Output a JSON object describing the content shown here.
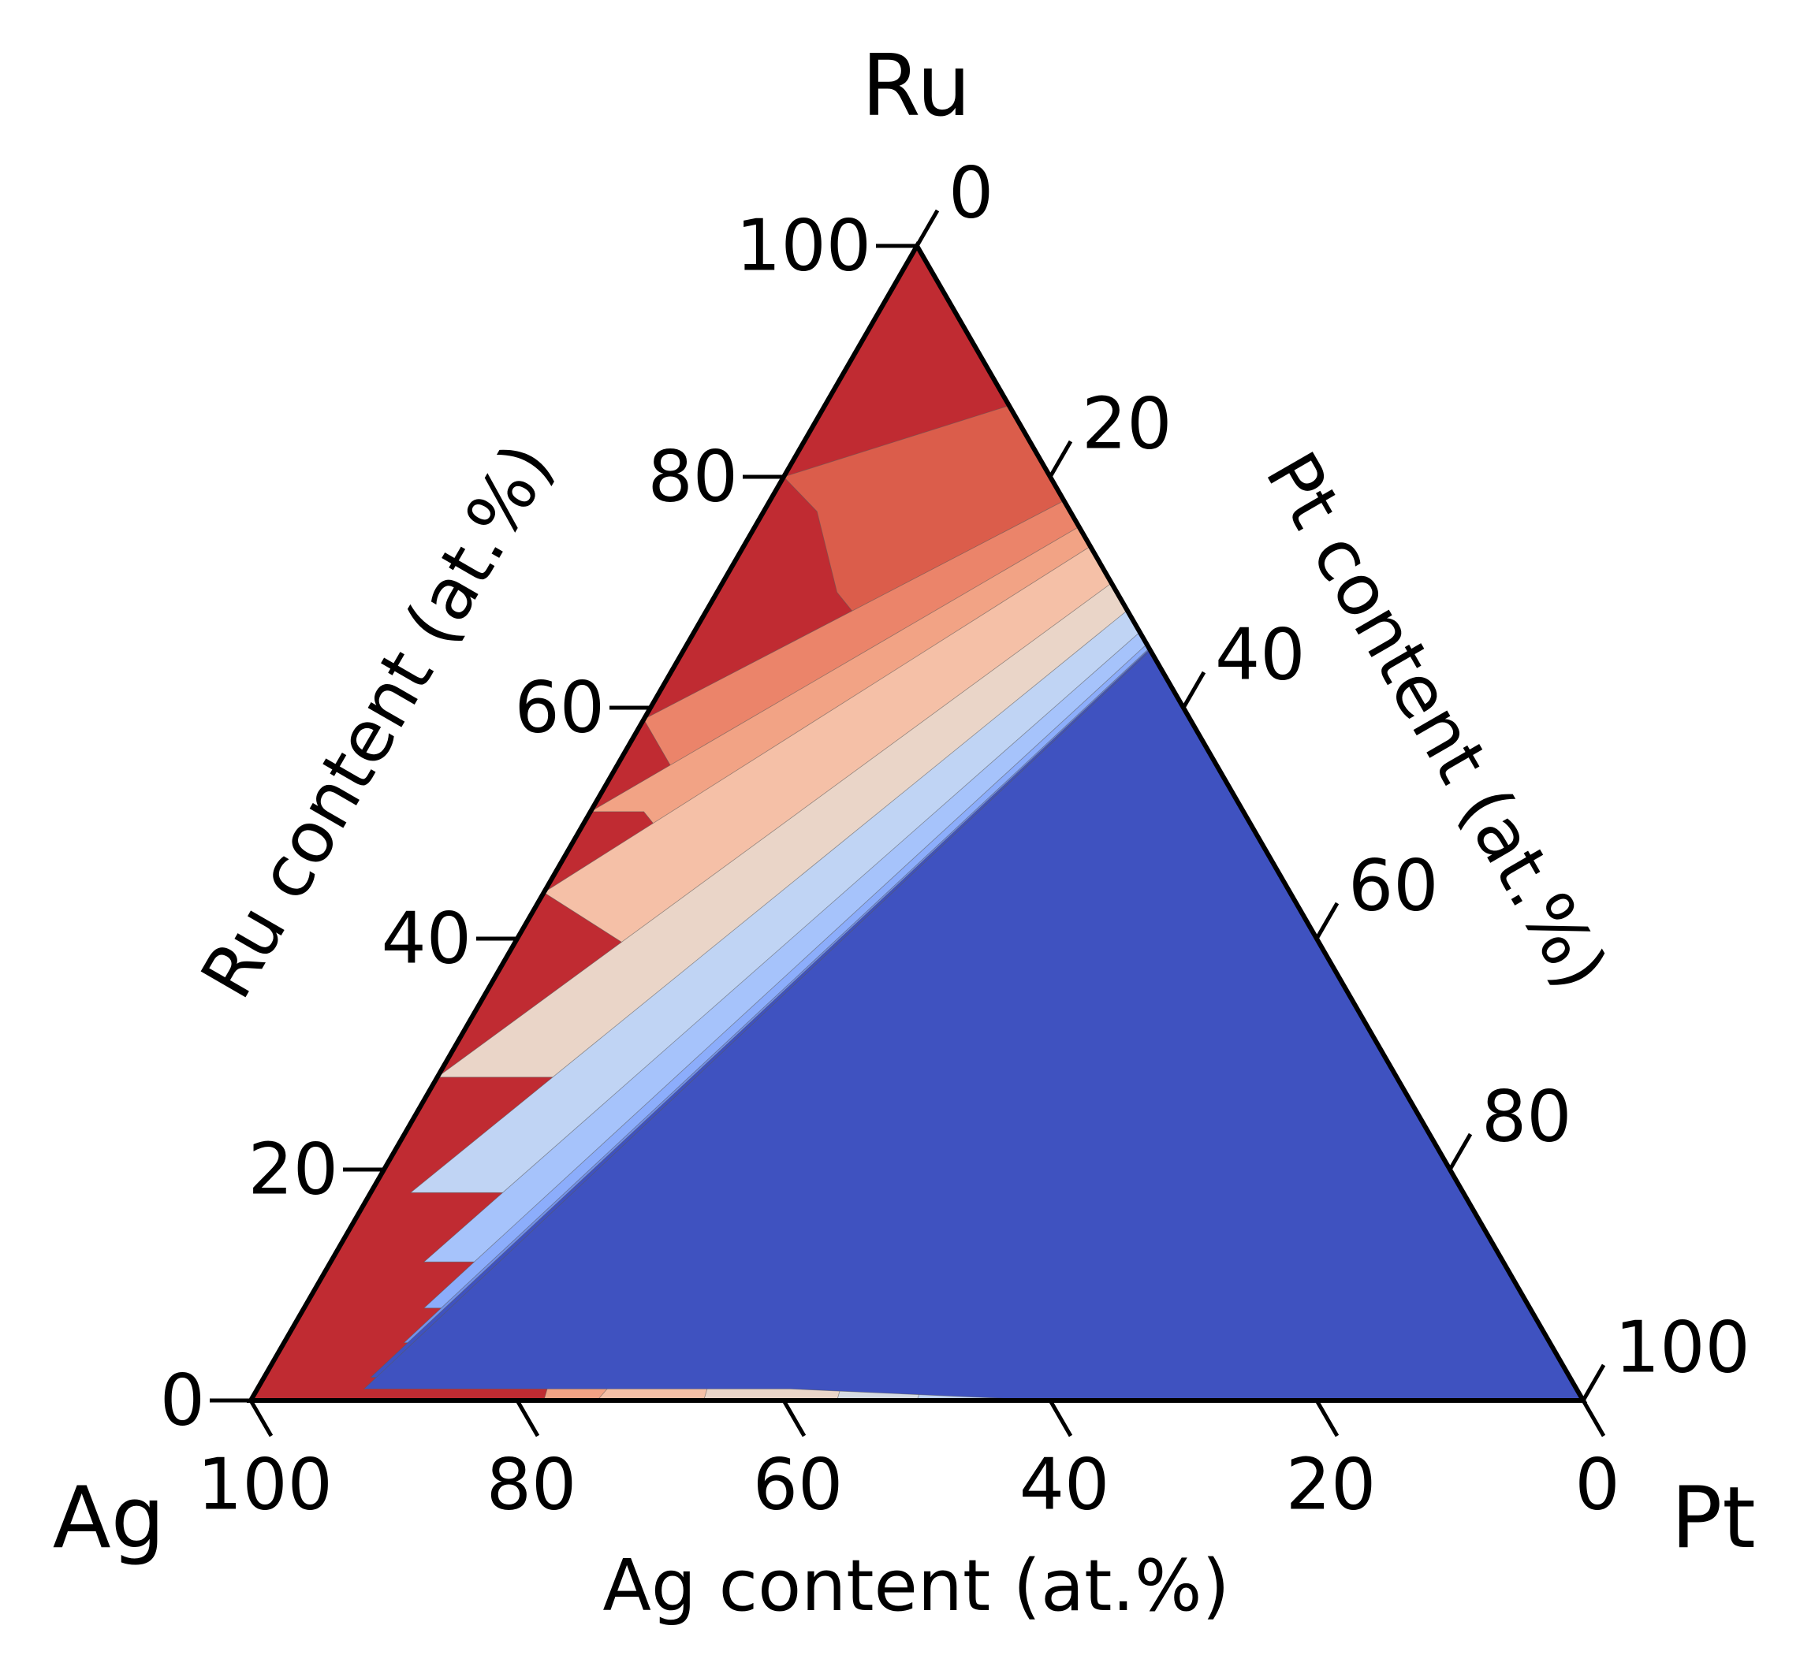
{
  "chart_data": {
    "type": "ternary-contour",
    "vertices": {
      "top": "Ru",
      "left": "Ag",
      "right": "Pt"
    },
    "axes": {
      "left": {
        "label": "Ru content (at.%)",
        "ticks": [
          "0",
          "20",
          "40",
          "60",
          "80",
          "100"
        ]
      },
      "right": {
        "label": "Pt content (at.%)",
        "ticks": [
          "0",
          "20",
          "40",
          "60",
          "80",
          "100"
        ]
      },
      "bottom": {
        "label": "Ag content (at.%)",
        "ticks": [
          "100",
          "80",
          "60",
          "40",
          "20",
          "0"
        ]
      }
    },
    "colormap": "coolwarm (red = high, blue = low)",
    "level_colors": [
      "#c02b32",
      "#db5d4b",
      "#eb846a",
      "#f2a385",
      "#f5c0a7",
      "#ead5c8",
      "#d6dbe2",
      "#c0d4f4",
      "#a6c3fb",
      "#8cadfb",
      "#7191ed",
      "#5570d8",
      "#3f52c0"
    ],
    "contours": [
      {
        "level": 1,
        "boundary": [
          [
            0,
            80
          ],
          [
            4,
            77
          ],
          [
            9,
            70
          ],
          [
            15,
            65
          ],
          [
            18,
            60
          ],
          [
            21,
            54
          ],
          [
            27,
            47
          ],
          [
            31,
            43
          ],
          [
            34,
            37
          ],
          [
            37,
            32
          ],
          [
            36,
            26
          ],
          [
            39,
            21
          ],
          [
            45,
            13
          ],
          [
            42,
            9
          ],
          [
            47,
            5
          ],
          [
            51,
            0
          ]
        ]
      },
      {
        "level": 2,
        "boundary": [
          [
            0,
            59
          ],
          [
            5,
            54
          ],
          [
            10,
            50
          ],
          [
            13,
            47
          ],
          [
            15,
            43
          ],
          [
            18,
            39
          ],
          [
            22,
            34
          ],
          [
            24,
            28
          ],
          [
            27,
            23
          ],
          [
            26,
            19
          ],
          [
            30,
            13
          ],
          [
            25,
            9
          ],
          [
            27,
            6
          ],
          [
            27,
            0
          ]
        ]
      },
      {
        "level": 3,
        "boundary": [
          [
            0,
            51
          ],
          [
            4,
            51
          ],
          [
            10,
            46
          ],
          [
            13,
            41
          ],
          [
            15,
            36
          ],
          [
            17,
            33
          ],
          [
            20,
            31
          ],
          [
            21,
            26
          ],
          [
            22,
            22
          ],
          [
            21,
            18
          ],
          [
            23,
            13
          ],
          [
            20,
            8
          ],
          [
            21,
            4
          ],
          [
            22,
            0
          ]
        ]
      },
      {
        "level": 4,
        "boundary": [
          [
            0,
            44
          ],
          [
            13,
            37
          ],
          [
            17,
            32
          ],
          [
            20,
            28
          ],
          [
            23,
            25
          ],
          [
            25,
            20
          ],
          [
            26,
            16
          ],
          [
            26,
            12
          ],
          [
            29,
            8
          ],
          [
            27,
            4
          ],
          [
            26,
            0
          ]
        ]
      },
      {
        "level": 5,
        "boundary": [
          [
            0,
            28
          ],
          [
            13,
            28
          ],
          [
            22,
            26
          ],
          [
            27,
            23
          ],
          [
            33,
            18
          ],
          [
            35,
            14
          ],
          [
            35,
            10
          ],
          [
            35,
            6
          ],
          [
            33,
            4
          ],
          [
            34,
            0
          ]
        ]
      },
      {
        "level": 6,
        "boundary": [
          [
            5,
            21
          ],
          [
            14,
            22
          ],
          [
            25,
            20
          ],
          [
            31,
            17
          ],
          [
            36,
            14
          ],
          [
            39,
            11
          ],
          [
            41,
            7
          ],
          [
            43,
            4
          ],
          [
            44,
            0
          ]
        ]
      },
      {
        "level": 7,
        "boundary": [
          [
            3,
            18
          ],
          [
            14,
            18
          ],
          [
            22,
            18
          ],
          [
            30,
            16
          ],
          [
            36,
            14
          ],
          [
            42,
            11
          ],
          [
            46,
            7
          ],
          [
            49,
            5
          ],
          [
            50,
            0
          ]
        ]
      },
      {
        "level": 8,
        "boundary": [
          [
            7,
            12
          ],
          [
            20,
            12
          ],
          [
            30,
            11
          ],
          [
            38,
            9
          ],
          [
            44,
            6
          ],
          [
            50,
            4
          ],
          [
            57,
            2
          ],
          [
            58,
            0
          ]
        ]
      },
      {
        "level": 9,
        "boundary": [
          [
            9,
            8
          ],
          [
            20,
            8
          ],
          [
            33,
            8
          ],
          [
            42,
            6
          ],
          [
            51,
            4
          ],
          [
            59,
            2
          ],
          [
            64,
            0
          ]
        ]
      },
      {
        "level": 10,
        "boundary": [
          [
            9,
            5
          ],
          [
            20,
            5
          ],
          [
            30,
            4
          ],
          [
            44,
            4
          ],
          [
            56,
            2
          ],
          [
            65,
            0
          ]
        ]
      },
      {
        "level": 11,
        "boundary": [
          [
            9,
            3
          ],
          [
            20,
            3
          ],
          [
            35,
            3
          ],
          [
            47,
            2
          ],
          [
            62,
            1
          ],
          [
            70,
            0
          ]
        ]
      },
      {
        "level": 12,
        "boundary": [
          [
            8,
            2
          ],
          [
            20,
            2
          ],
          [
            30,
            2
          ],
          [
            45,
            1
          ],
          [
            60,
            0
          ],
          [
            75,
            0
          ]
        ]
      },
      {
        "level": 13,
        "boundary": [
          [
            8,
            1
          ],
          [
            20,
            1
          ],
          [
            40,
            1
          ],
          [
            60,
            0
          ],
          [
            70,
            0
          ]
        ]
      }
    ]
  }
}
